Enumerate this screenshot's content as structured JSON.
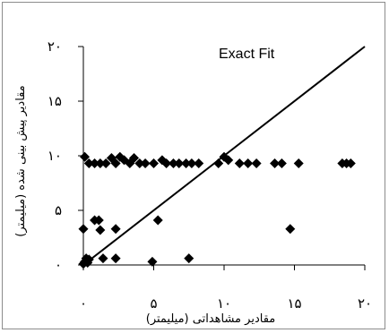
{
  "chart_data": {
    "type": "scatter",
    "title": "",
    "annotation": "Exact Fit",
    "xlabel": "مقادیر مشاهداتی (میلیمتر)",
    "ylabel": "مقادیر پیش بینی شده (میلیمتر)",
    "xlim": [
      0,
      20
    ],
    "ylim": [
      0,
      20
    ],
    "xticks": [
      0,
      5,
      10,
      15,
      20
    ],
    "xtick_labels": [
      "۰",
      "۵",
      "۱۰",
      "۱۵",
      "۲۰"
    ],
    "yticks": [
      0,
      5,
      10,
      15,
      20
    ],
    "ytick_labels": [
      "۰",
      "۵",
      "۱۰",
      "۱۵",
      "۲۰"
    ],
    "grid": false,
    "marker_color": "#000000",
    "line_color": "#000000",
    "fit_line": {
      "from": [
        0,
        0
      ],
      "to": [
        20,
        20
      ]
    },
    "points": [
      [
        0.0,
        0.1
      ],
      [
        0.1,
        0.3
      ],
      [
        0.2,
        0.6
      ],
      [
        0.3,
        0.2
      ],
      [
        0.4,
        0.5
      ],
      [
        0.0,
        3.3
      ],
      [
        0.8,
        4.1
      ],
      [
        1.1,
        4.1
      ],
      [
        1.2,
        3.2
      ],
      [
        2.3,
        3.3
      ],
      [
        1.4,
        0.6
      ],
      [
        2.3,
        0.6
      ],
      [
        4.9,
        0.3
      ],
      [
        5.3,
        4.1
      ],
      [
        14.7,
        3.3
      ],
      [
        7.5,
        0.6
      ],
      [
        0.1,
        9.9
      ],
      [
        0.4,
        9.3
      ],
      [
        0.8,
        9.3
      ],
      [
        1.2,
        9.3
      ],
      [
        1.6,
        9.3
      ],
      [
        2.0,
        9.8
      ],
      [
        2.3,
        9.3
      ],
      [
        2.6,
        9.9
      ],
      [
        2.9,
        9.6
      ],
      [
        3.3,
        9.3
      ],
      [
        3.6,
        9.8
      ],
      [
        4.0,
        9.3
      ],
      [
        4.4,
        9.3
      ],
      [
        5.0,
        9.3
      ],
      [
        5.6,
        9.6
      ],
      [
        5.9,
        9.3
      ],
      [
        6.4,
        9.3
      ],
      [
        6.8,
        9.3
      ],
      [
        7.3,
        9.3
      ],
      [
        7.7,
        9.3
      ],
      [
        8.2,
        9.3
      ],
      [
        9.6,
        9.3
      ],
      [
        10.0,
        9.9
      ],
      [
        10.3,
        9.6
      ],
      [
        11.1,
        9.3
      ],
      [
        11.7,
        9.3
      ],
      [
        12.3,
        9.3
      ],
      [
        13.6,
        9.3
      ],
      [
        14.1,
        9.3
      ],
      [
        15.3,
        9.3
      ],
      [
        18.4,
        9.3
      ],
      [
        18.7,
        9.3
      ],
      [
        19.0,
        9.3
      ]
    ]
  }
}
